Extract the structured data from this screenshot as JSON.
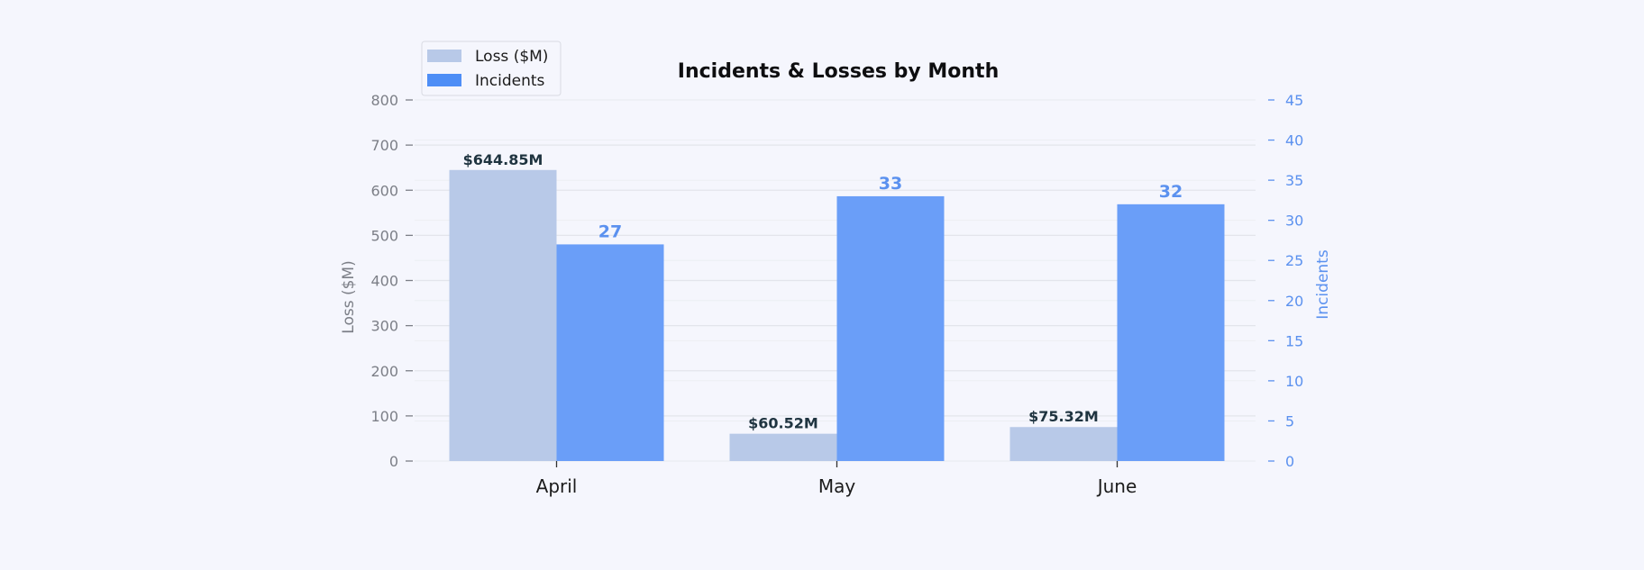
{
  "chart_data": {
    "type": "bar",
    "title": "Incidents & Losses by Month",
    "categories": [
      "April",
      "May",
      "June"
    ],
    "series": [
      {
        "name": "Loss ($M)",
        "axis": "left",
        "color": "#b8c9e8",
        "values": [
          644.85,
          60.52,
          75.32
        ],
        "labels": [
          "$644.85M",
          "$60.52M",
          "$75.32M"
        ],
        "label_color": "#1f3440"
      },
      {
        "name": "Incidents",
        "axis": "right",
        "color": "#6a9ef8",
        "values": [
          27,
          33,
          32
        ],
        "labels": [
          "27",
          "33",
          "32"
        ],
        "label_color": "#5b91ef"
      }
    ],
    "y_left": {
      "label": "Loss ($M)",
      "range": [
        0,
        800
      ],
      "ticks": [
        "0",
        "100",
        "200",
        "300",
        "400",
        "500",
        "600",
        "700",
        "800"
      ],
      "color": "#7c7f87"
    },
    "y_right": {
      "label": "Incidents",
      "range": [
        0,
        45
      ],
      "ticks": [
        "0",
        "5",
        "10",
        "15",
        "20",
        "25",
        "30",
        "35",
        "40",
        "45"
      ],
      "color": "#5b91ef"
    },
    "grid": true,
    "legend": {
      "position": "top-left",
      "items": [
        {
          "label": "Loss ($M)",
          "color": "#b8c9e8"
        },
        {
          "label": "Incidents",
          "color": "#4e8ef6"
        }
      ]
    }
  }
}
